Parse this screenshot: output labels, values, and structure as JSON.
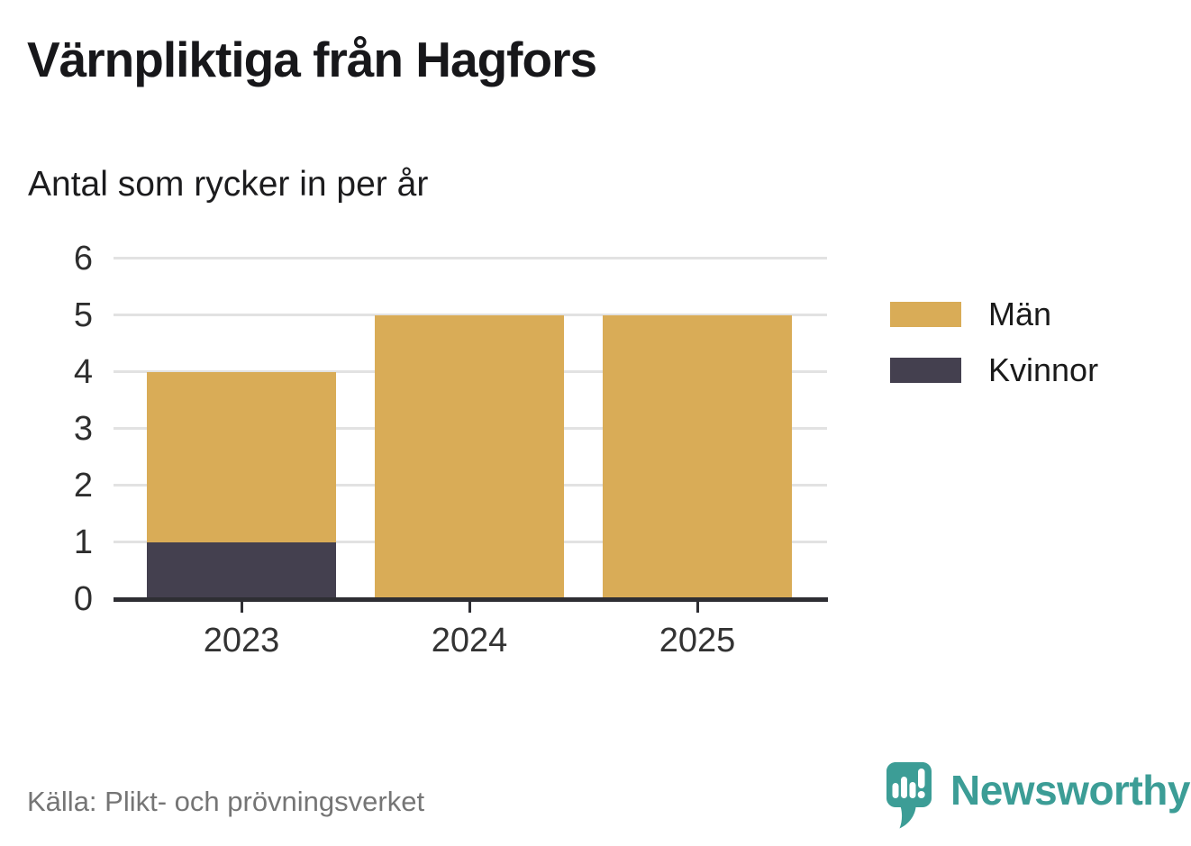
{
  "title": "Värnpliktiga från Hagfors",
  "subtitle": "Antal som rycker in per år",
  "source": "Källa: Plikt- och prövningsverket",
  "brand": {
    "name": "Newsworthy",
    "color": "#3C9D96"
  },
  "colors": {
    "men": "#D9AC57",
    "women": "#44404F",
    "grid": "#e2e2e2",
    "axis": "#2e2e33",
    "teal": "#3C9D96"
  },
  "chart_data": {
    "type": "bar",
    "stacked": true,
    "title": "Värnpliktiga från Hagfors",
    "subtitle": "Antal som rycker in per år",
    "categories": [
      "2023",
      "2024",
      "2025"
    ],
    "series": [
      {
        "name": "Män",
        "color": "#D9AC57",
        "values": [
          3,
          5,
          5
        ]
      },
      {
        "name": "Kvinnor",
        "color": "#44404F",
        "values": [
          1,
          0,
          0
        ]
      }
    ],
    "totals": [
      4,
      5,
      5
    ],
    "yticks": [
      0,
      1,
      2,
      3,
      4,
      5,
      6
    ],
    "ylim": [
      0,
      6
    ],
    "xlabel": "",
    "ylabel": "",
    "grid": true,
    "legend_position": "right"
  }
}
